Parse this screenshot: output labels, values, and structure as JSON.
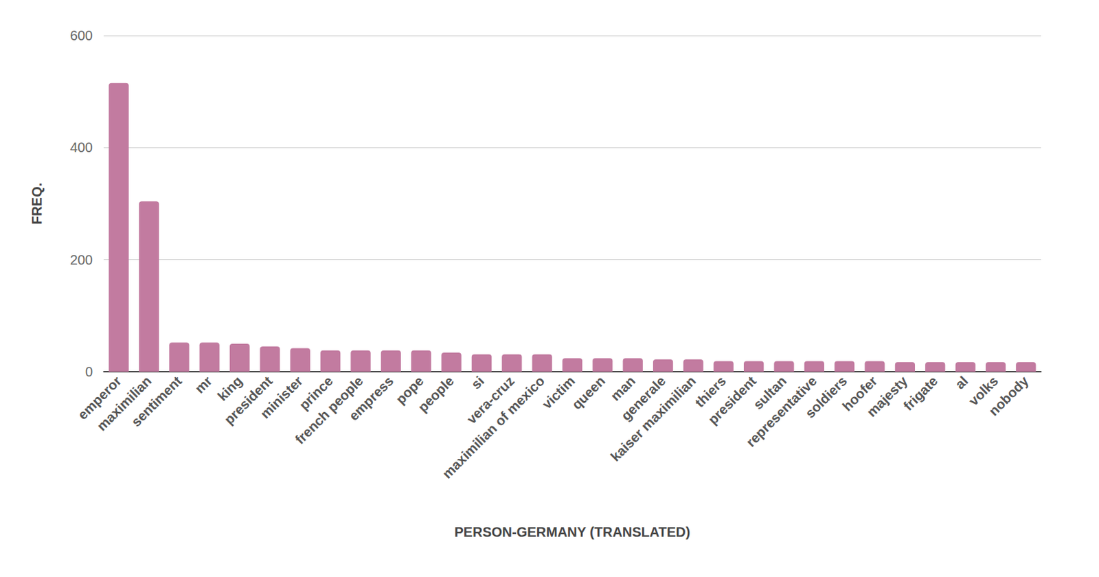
{
  "chart_data": {
    "type": "bar",
    "x_label": "PERSON-GERMANY (TRANSLATED)",
    "y_label": "FREQ.",
    "categories": [
      "emperor",
      "maximilian",
      "sentiment",
      "mr",
      "king",
      "president",
      "minister",
      "prince",
      "french people",
      "empress",
      "pope",
      "people",
      "si",
      "vera-cruz",
      "maximilian of mexico",
      "victim",
      "queen",
      "man",
      "generale",
      "kaiser maximilian",
      "thiers",
      "president",
      "sultan",
      "representative",
      "soldiers",
      "hoofer",
      "majesty",
      "frigate",
      "al",
      "volks",
      "nobody"
    ],
    "values": [
      515,
      304,
      52,
      52,
      50,
      45,
      42,
      38,
      38,
      38,
      38,
      34,
      31,
      31,
      31,
      24,
      24,
      24,
      22,
      22,
      19,
      19,
      19,
      19,
      19,
      19,
      17,
      17,
      17,
      17,
      17
    ],
    "color": "#c27ba0",
    "ylim": [
      0,
      600
    ],
    "yticks": [
      0,
      200,
      400,
      600
    ],
    "grid": true
  }
}
